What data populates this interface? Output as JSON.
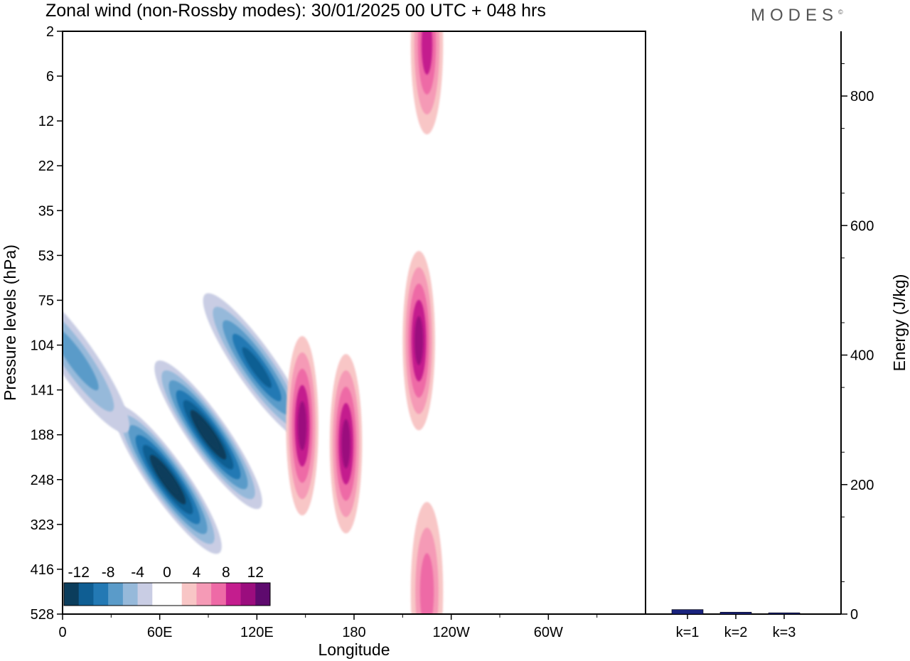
{
  "title": "Zonal wind (non-Rossby modes):  30/01/2025  00 UTC  + 048 hrs",
  "brand": "MODES",
  "brand_mark": "©",
  "chart_data": [
    {
      "type": "heatmap",
      "xlabel": "Longitude",
      "ylabel": "Pressure levels (hPa)",
      "x_ticks": [
        {
          "label": "0",
          "lon": 0
        },
        {
          "label": "60E",
          "lon": 60
        },
        {
          "label": "120E",
          "lon": 120
        },
        {
          "label": "180",
          "lon": 180
        },
        {
          "label": "120W",
          "lon": 240
        },
        {
          "label": "60W",
          "lon": 300
        }
      ],
      "xlim": [
        0,
        360
      ],
      "y_levels": [
        "2",
        "6",
        "12",
        "22",
        "35",
        "53",
        "75",
        "104",
        "141",
        "188",
        "248",
        "323",
        "416",
        "528"
      ],
      "colorbar": {
        "labels": [
          "-12",
          "-8",
          "-4",
          "0",
          "4",
          "8",
          "12"
        ],
        "colors": [
          "#0b3d5c",
          "#0f5e93",
          "#2379b4",
          "#5a9bc9",
          "#96b9da",
          "#c9cde4",
          "#ffffff",
          "#ffffff",
          "#f8c6c6",
          "#f59ab6",
          "#ee6aa6",
          "#c41d8e",
          "#9b0d7e",
          "#5e0a6e"
        ]
      },
      "features": [
        {
          "sign": "negative",
          "lon": 65,
          "level_index": 10.0,
          "value": -14
        },
        {
          "sign": "negative",
          "lon": 90,
          "level_index": 9.0,
          "value": -14
        },
        {
          "sign": "negative",
          "lon": 120,
          "level_index": 7.5,
          "value": -10
        },
        {
          "sign": "negative",
          "lon": 8,
          "level_index": 7.3,
          "value": -6
        },
        {
          "sign": "positive",
          "lon": 148,
          "level_index": 8.8,
          "value": 10
        },
        {
          "sign": "positive",
          "lon": 175,
          "level_index": 9.2,
          "value": 10
        },
        {
          "sign": "positive",
          "lon": 220,
          "level_index": 6.9,
          "value": 10
        },
        {
          "sign": "positive",
          "lon": 225,
          "level_index": 12.5,
          "value": 6
        },
        {
          "sign": "positive",
          "lon": 225,
          "level_index": 0.3,
          "value": 8
        }
      ]
    },
    {
      "type": "bar",
      "categories": [
        "k=1",
        "k=2",
        "k=3"
      ],
      "values": [
        7,
        3,
        2
      ],
      "ylabel": "Energy (J/kg)",
      "ylim": [
        0,
        900
      ],
      "y_ticks": [
        "0",
        "200",
        "400",
        "600",
        "800"
      ],
      "colors": [
        "#1a237e",
        "#1a237e",
        "#1a237e"
      ]
    }
  ]
}
